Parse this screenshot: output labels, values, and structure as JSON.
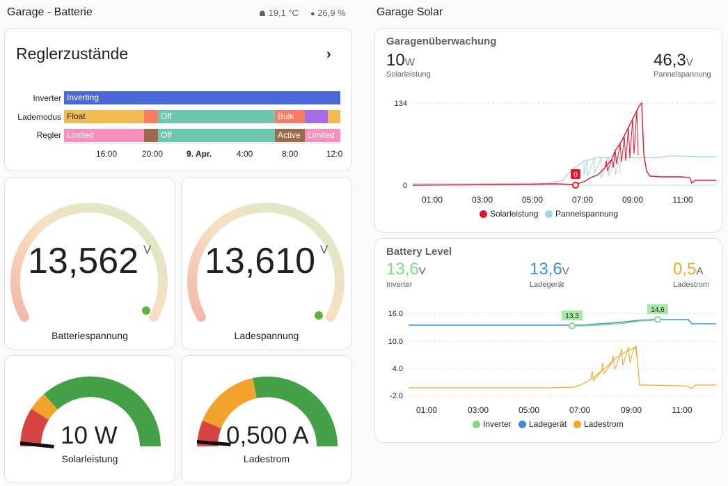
{
  "left": {
    "title": "Garage - Batterie",
    "temperature": "19,1 °C",
    "humidity": "26,9 %",
    "timeline": {
      "title": "Reglerzustände",
      "rows": [
        {
          "label": "Inverter",
          "segments": [
            {
              "text": "Inverting",
              "color": "#4a69d4"
            }
          ]
        },
        {
          "label": "Lademodus",
          "segments": [
            {
              "text": "Float",
              "color": "#f2bb52"
            },
            {
              "text": "",
              "color": "#fa7a63"
            },
            {
              "text": "Off",
              "color": "#6cc7ae"
            },
            {
              "text": "Bulk",
              "color": "#fa7a63"
            },
            {
              "text": "",
              "color": "#a76ae8"
            },
            {
              "text": "",
              "color": "#f2bb52"
            }
          ]
        },
        {
          "label": "Regler",
          "segments": [
            {
              "text": "Limited",
              "color": "#f78fbd"
            },
            {
              "text": "",
              "color": "#9b6a4a"
            },
            {
              "text": "Off",
              "color": "#6cc7ae"
            },
            {
              "text": "Active",
              "color": "#9b6a4a"
            },
            {
              "text": "Limited",
              "color": "#f78fbd"
            }
          ]
        }
      ],
      "ticks": [
        "16:00",
        "20:00",
        "9. Apr.",
        "4:00",
        "8:00",
        "12:0"
      ]
    },
    "gauges": [
      {
        "value": "13,562",
        "unit": "V",
        "name": "Batteriespannung"
      },
      {
        "value": "13,610",
        "unit": "V",
        "name": "Ladespannung"
      }
    ],
    "needle_gauges": [
      {
        "value": "10 W",
        "name": "Solarleistung"
      },
      {
        "value": "0,500 A",
        "name": "Ladestrom"
      }
    ]
  },
  "right": {
    "title": "Garage Solar",
    "solar_card": {
      "title": "Garagenüberwachung",
      "stat1": {
        "value": "10",
        "unit": "W",
        "label": "Solarleistung"
      },
      "stat2": {
        "value": "46,3",
        "unit": "V",
        "label": "Pannelspannung"
      }
    },
    "battery_card": {
      "title": "Battery Level",
      "stat1": {
        "value": "13,6",
        "unit": "V",
        "label": "Inverter",
        "color": "#7fdc7f"
      },
      "stat2": {
        "value": "13,6",
        "unit": "V",
        "label": "Ladegerät",
        "color": "#3b8ed6"
      },
      "stat3": {
        "value": "0,5",
        "unit": "A",
        "label": "Ladestrom",
        "color": "#f5a623"
      }
    }
  },
  "chart_data": [
    {
      "type": "line",
      "x_ticks": [
        "01:00",
        "03:00",
        "05:00",
        "07:00",
        "09:00",
        "11:00"
      ],
      "y_ticks": [
        "134",
        "0"
      ],
      "series": [
        {
          "name": "Solarleistung",
          "color": "#e8142a"
        },
        {
          "name": "Pannelspannung",
          "color": "#a7d3e6"
        }
      ],
      "annotations": [
        "0"
      ]
    },
    {
      "type": "line",
      "x_ticks": [
        "01:00",
        "03:00",
        "05:00",
        "07:00",
        "09:00",
        "11:00"
      ],
      "y_ticks": [
        "16.0",
        "10.0",
        "4.0",
        "-2.0"
      ],
      "series": [
        {
          "name": "Inverter",
          "color": "#7fdc7f"
        },
        {
          "name": "Ladegerät",
          "color": "#3b8ed6"
        },
        {
          "name": "Ladestrom",
          "color": "#f5a623"
        }
      ],
      "annotations": [
        "13,3",
        "14,6"
      ]
    }
  ]
}
